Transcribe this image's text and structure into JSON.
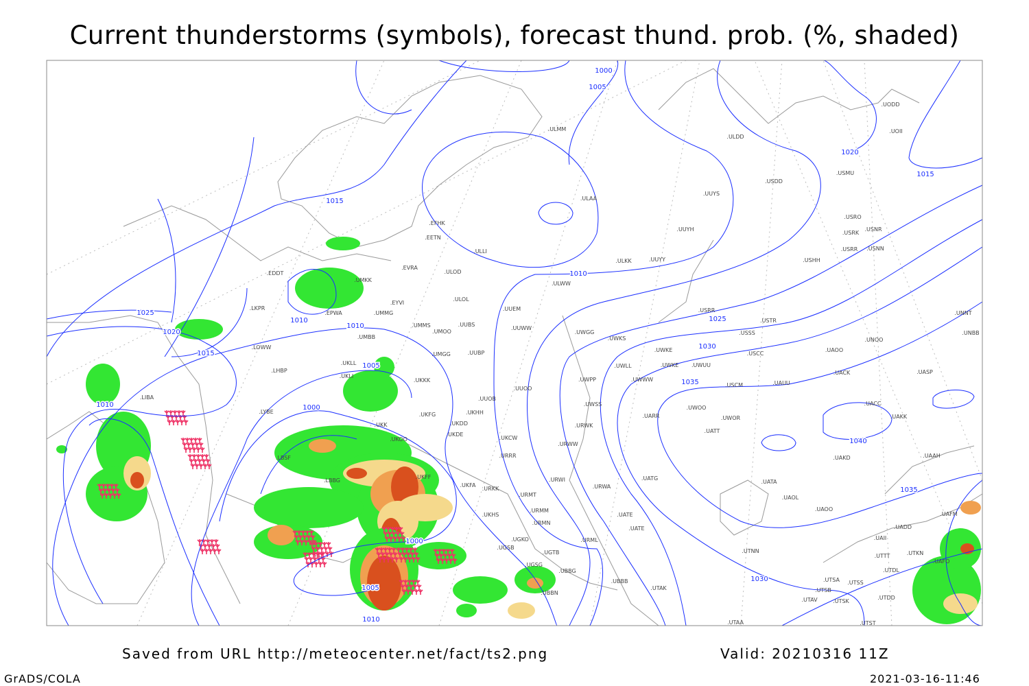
{
  "title": "Current thunderstorms (symbols), forecast thund. prob. (%, shaded)",
  "footer": {
    "source": "Saved from URL http://meteocenter.net/fact/ts2.png",
    "valid": "Valid: 20210316 11Z",
    "software": "GrADS/COLA",
    "timestamp": "2021-03-16-11:46"
  },
  "colors": {
    "isobar": "#1a2eff",
    "coastline": "#999999",
    "prob_low": "#33e633",
    "prob_mid": "#f5d98c",
    "prob_high": "#f0a050",
    "prob_max": "#d9501e",
    "thunderstorm_symbol": "#ee3366"
  },
  "isobar_labels": [
    "1000",
    "1005",
    "1015",
    "1020",
    "1015",
    "1010",
    "1025",
    "1020",
    "1010",
    "1010",
    "1015",
    "1025",
    "1030",
    "1005",
    "1035",
    "1010",
    "1000",
    "1040",
    "1035",
    "1000",
    "1030",
    "1005",
    "1010"
  ],
  "stations": [
    "ULMM",
    "ULDD",
    "UODD",
    "UOII",
    "USMU",
    "USDD",
    "ULAA",
    "UUYS",
    "USRO",
    "USRK",
    "USNR",
    "USRR",
    "USNN",
    "UUYH",
    "EFHK",
    "EETN",
    "ULLI",
    "ULKK",
    "UUYY",
    "USHH",
    "EVRA",
    "ULOD",
    "ULWW",
    "EDDT",
    "UMKK",
    "EYVI",
    "ULOL",
    "UUEM",
    "LKPR",
    "EPWA",
    "UMMG",
    "UMMS",
    "UMOO",
    "UUBS",
    "UUWW",
    "USRR",
    "USTR",
    "UNNT",
    "UNBB",
    "LOWW",
    "UMBB",
    "UWGG",
    "UWKS",
    "USSS",
    "UNOO",
    "UWKE",
    "UWKE",
    "UWUU",
    "USCC",
    "UAOO",
    "UMGG",
    "UUBP",
    "LHBP",
    "UKLL",
    "UKLI",
    "UKKK",
    "UWLL",
    "UACK",
    "UASP",
    "UWPP",
    "UWWW",
    "USCM",
    "UAUU",
    "UUOO",
    "LIBA",
    "LYBE",
    "UUOB",
    "UWSS",
    "UACC",
    "UAKK",
    "UKFG",
    "UKDD",
    "UKHH",
    "UARR",
    "UWOO",
    "UWOR",
    "UKK",
    "URWK",
    "UATT",
    "UKDE",
    "UKOO",
    "UKCW",
    "URWW",
    "LBSF",
    "URRR",
    "UAKD",
    "UAAH",
    "LBBG",
    "UKFF",
    "UKFA",
    "URKK",
    "URWI",
    "URWA",
    "UATG",
    "UATA",
    "UAOL",
    "UAOO",
    "URMT",
    "URMM",
    "URMN",
    "UATE",
    "UATE",
    "UKHS",
    "UAFM",
    "UADD",
    "UGKO",
    "UAII",
    "URML",
    "UGSB",
    "UGTB",
    "UTNN",
    "UTTT",
    "UTKN",
    "UAFO",
    "UGSG",
    "UBBG",
    "UTDL",
    "UBBB",
    "UTAK",
    "UTSA",
    "UTSS",
    "UTSB",
    "UBBN",
    "UTAV",
    "UTSK",
    "UTDD",
    "UTAA",
    "UTST"
  ]
}
